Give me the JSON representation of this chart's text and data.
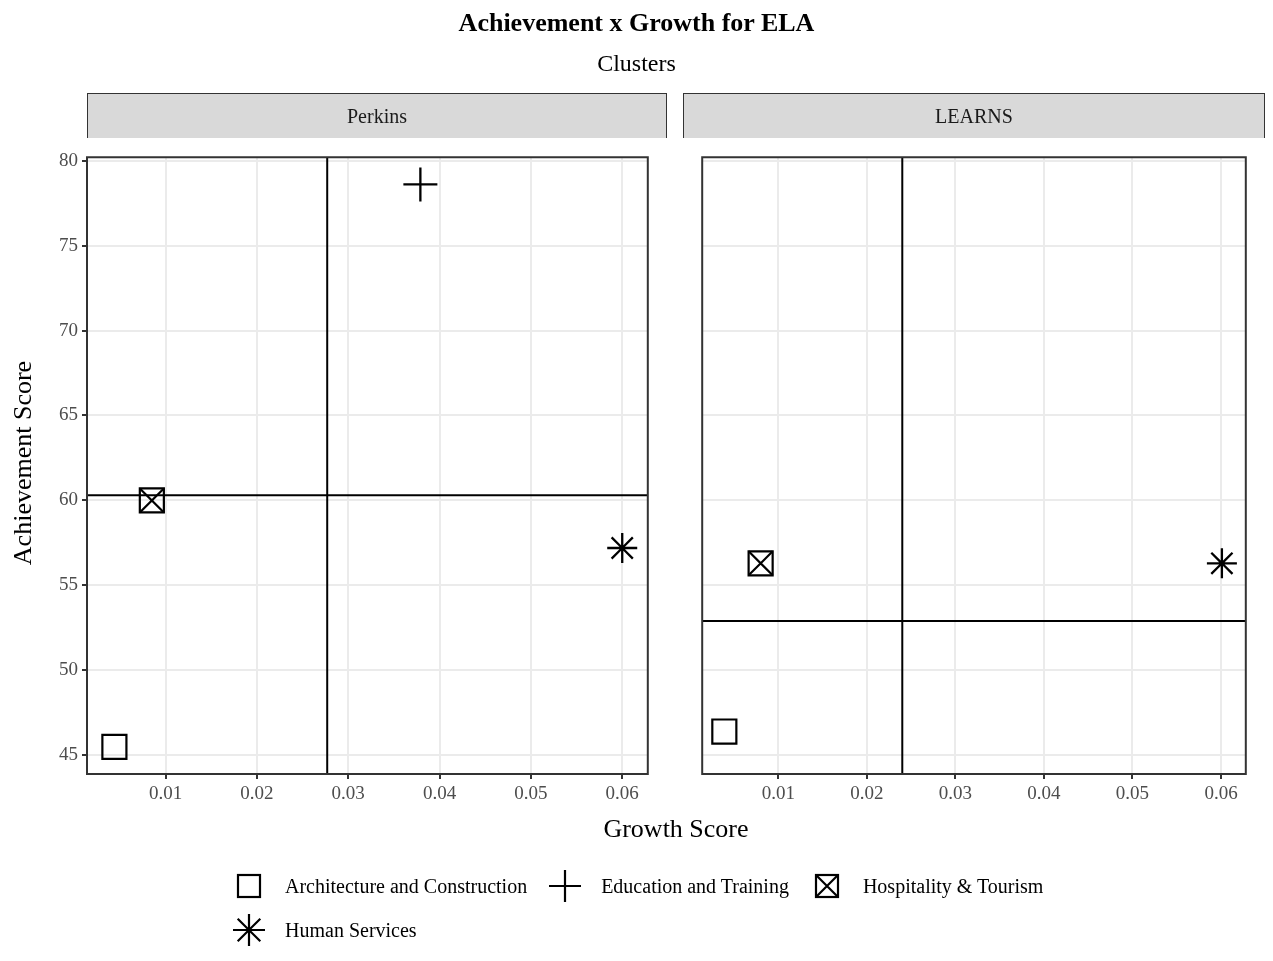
{
  "chart_data": [
    {
      "type": "scatter",
      "title": "Perkins",
      "annotations": [
        "Achievement x Growth for ELA",
        "Clusters"
      ],
      "xlabel": "Growth Score",
      "ylabel": "Achievement Score",
      "legend": "bottom",
      "grid": true,
      "xlim": [
        0.0014,
        0.0628
      ],
      "xticks": [
        0.01,
        0.02,
        0.03,
        0.04,
        0.05,
        0.06
      ],
      "ylim": [
        43.9,
        80.2
      ],
      "yticks": [
        45,
        50,
        55,
        60,
        65,
        70,
        75,
        80
      ],
      "series": [
        {
          "name": "Architecture and Construction",
          "color": "#000000",
          "marker": "square",
          "x": [
            0.0044
          ],
          "values": [
            45.5
          ]
        },
        {
          "name": "Education and Training",
          "color": "#000000",
          "marker": "cross",
          "x": [
            0.0379
          ],
          "values": [
            78.6
          ]
        },
        {
          "name": "Hospitality & Tourism",
          "color": "#000000",
          "marker": "square-cross",
          "x": [
            0.0085
          ],
          "values": [
            60.0
          ]
        },
        {
          "name": "Human Services",
          "color": "#000000",
          "marker": "star",
          "x": [
            0.06
          ],
          "values": [
            57.2
          ]
        }
      ],
      "ref_lines": [
        {
          "axis": "x",
          "value": 0.0277,
          "color": "#000000"
        },
        {
          "axis": "y",
          "value": 60.3,
          "color": "#000000"
        }
      ]
    },
    {
      "type": "scatter",
      "title": "LEARNS",
      "grid": true,
      "tick_labels": "x",
      "xlim": [
        0.0014,
        0.0628
      ],
      "xticks": [
        0.01,
        0.02,
        0.03,
        0.04,
        0.05,
        0.06
      ],
      "ylim": [
        43.9,
        80.2
      ],
      "yticks": [
        45,
        50,
        55,
        60,
        65,
        70,
        75,
        80
      ],
      "series": [
        {
          "name": "Architecture and Construction",
          "color": "#000000",
          "marker": "square",
          "x": [
            0.0039
          ],
          "values": [
            46.4
          ]
        },
        {
          "name": "Hospitality & Tourism",
          "color": "#000000",
          "marker": "square-cross",
          "x": [
            0.008
          ],
          "values": [
            56.3
          ]
        },
        {
          "name": "Human Services",
          "color": "#000000",
          "marker": "star",
          "x": [
            0.0601
          ],
          "values": [
            56.3
          ]
        }
      ],
      "ref_lines": [
        {
          "axis": "x",
          "value": 0.024,
          "color": "#000000"
        },
        {
          "axis": "y",
          "value": 52.9,
          "color": "#000000"
        }
      ]
    }
  ]
}
